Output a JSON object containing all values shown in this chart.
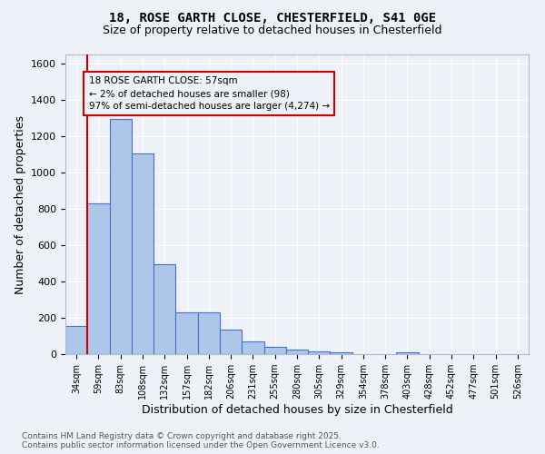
{
  "title_line1": "18, ROSE GARTH CLOSE, CHESTERFIELD, S41 0GE",
  "title_line2": "Size of property relative to detached houses in Chesterfield",
  "xlabel": "Distribution of detached houses by size in Chesterfield",
  "ylabel": "Number of detached properties",
  "bar_labels": [
    "34sqm",
    "59sqm",
    "83sqm",
    "108sqm",
    "132sqm",
    "157sqm",
    "182sqm",
    "206sqm",
    "231sqm",
    "255sqm",
    "280sqm",
    "305sqm",
    "329sqm",
    "354sqm",
    "378sqm",
    "403sqm",
    "428sqm",
    "452sqm",
    "477sqm",
    "501sqm",
    "526sqm"
  ],
  "bar_values": [
    155,
    830,
    1295,
    1105,
    495,
    232,
    232,
    135,
    70,
    42,
    25,
    15,
    12,
    0,
    0,
    8,
    0,
    0,
    0,
    0,
    0
  ],
  "bar_color": "#aec6e8",
  "bar_edge_color": "#4472c4",
  "vline_color": "#cc0000",
  "ylim": [
    0,
    1650
  ],
  "yticks": [
    0,
    200,
    400,
    600,
    800,
    1000,
    1200,
    1400,
    1600
  ],
  "annotation_text": "18 ROSE GARTH CLOSE: 57sqm\n← 2% of detached houses are smaller (98)\n97% of semi-detached houses are larger (4,274) →",
  "footnote": "Contains HM Land Registry data © Crown copyright and database right 2025.\nContains public sector information licensed under the Open Government Licence v3.0.",
  "bg_color": "#eef2f8",
  "grid_color": "#ffffff"
}
